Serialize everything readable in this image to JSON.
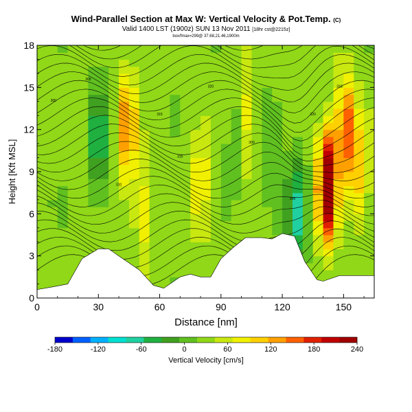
{
  "chart_data": {
    "type": "heatmap",
    "title": "Wind-Parallel Section at Max W: Vertical Velocity & Pot.Temp.",
    "title_tag": "(C)",
    "subtitle": "Valid 1400 LST (1900z) SUN 13 Nov 2011",
    "subtitle_tag": "[18hr cst@2215z]",
    "subtitle2": "box/fmax=299@ 37.68,21.46,1900m",
    "xlabel": "Distance [nm]",
    "ylabel": "Height [Kft MSL]",
    "xlim": [
      0,
      165
    ],
    "ylim": [
      0,
      18
    ],
    "xticks": [
      "0",
      "30",
      "60",
      "90",
      "120",
      "150"
    ],
    "yticks": [
      "0",
      "3",
      "6",
      "9",
      "12",
      "15",
      "18"
    ],
    "colorbar": {
      "label": "Vertical Velocity [cm/s]",
      "ticks": [
        "-180",
        "-120",
        "-60",
        "0",
        "60",
        "120",
        "180",
        "240"
      ],
      "range": [
        -180,
        240
      ],
      "colors": [
        "#0000cc",
        "#0060ff",
        "#00b0ff",
        "#00e0d0",
        "#20d0a0",
        "#20b040",
        "#40a020",
        "#60c020",
        "#90d818",
        "#c8e810",
        "#f0f000",
        "#ffd000",
        "#ffa000",
        "#ff6000",
        "#e02000",
        "#c00000",
        "#a00000"
      ]
    },
    "terrain": [
      [
        0,
        0.6
      ],
      [
        8,
        0.8
      ],
      [
        15,
        1.0
      ],
      [
        22,
        2.8
      ],
      [
        30,
        3.5
      ],
      [
        35,
        3.5
      ],
      [
        40,
        3.0
      ],
      [
        45,
        2.5
      ],
      [
        50,
        2.0
      ],
      [
        57,
        0.9
      ],
      [
        62,
        0.7
      ],
      [
        70,
        1.5
      ],
      [
        75,
        1.7
      ],
      [
        80,
        1.5
      ],
      [
        85,
        1.5
      ],
      [
        90,
        2.8
      ],
      [
        96,
        3.6
      ],
      [
        102,
        4.3
      ],
      [
        110,
        4.3
      ],
      [
        115,
        4.2
      ],
      [
        120,
        4.6
      ],
      [
        126,
        4.4
      ],
      [
        131,
        2.6
      ],
      [
        137,
        1.3
      ],
      [
        140,
        1.2
      ],
      [
        148,
        1.6
      ],
      [
        160,
        1.6
      ],
      [
        165,
        1.6
      ]
    ],
    "w_features": [
      {
        "x": 30,
        "z": 11,
        "w": -80
      },
      {
        "x": 44,
        "z": 12,
        "w": 120
      },
      {
        "x": 52,
        "z": 6,
        "w": 60
      },
      {
        "x": 80,
        "z": 8,
        "w": 70
      },
      {
        "x": 97,
        "z": 11,
        "w": -30
      },
      {
        "x": 103,
        "z": 13,
        "w": 60
      },
      {
        "x": 115,
        "z": 10,
        "w": -40
      },
      {
        "x": 127,
        "z": 6,
        "w": -90
      },
      {
        "x": 142,
        "z": 8,
        "w": 240
      },
      {
        "x": 151,
        "z": 12,
        "w": 140
      },
      {
        "x": 158,
        "z": 9,
        "w": 80
      }
    ],
    "theta_labels": [
      "300",
      "305",
      "310",
      "315",
      "320"
    ]
  }
}
